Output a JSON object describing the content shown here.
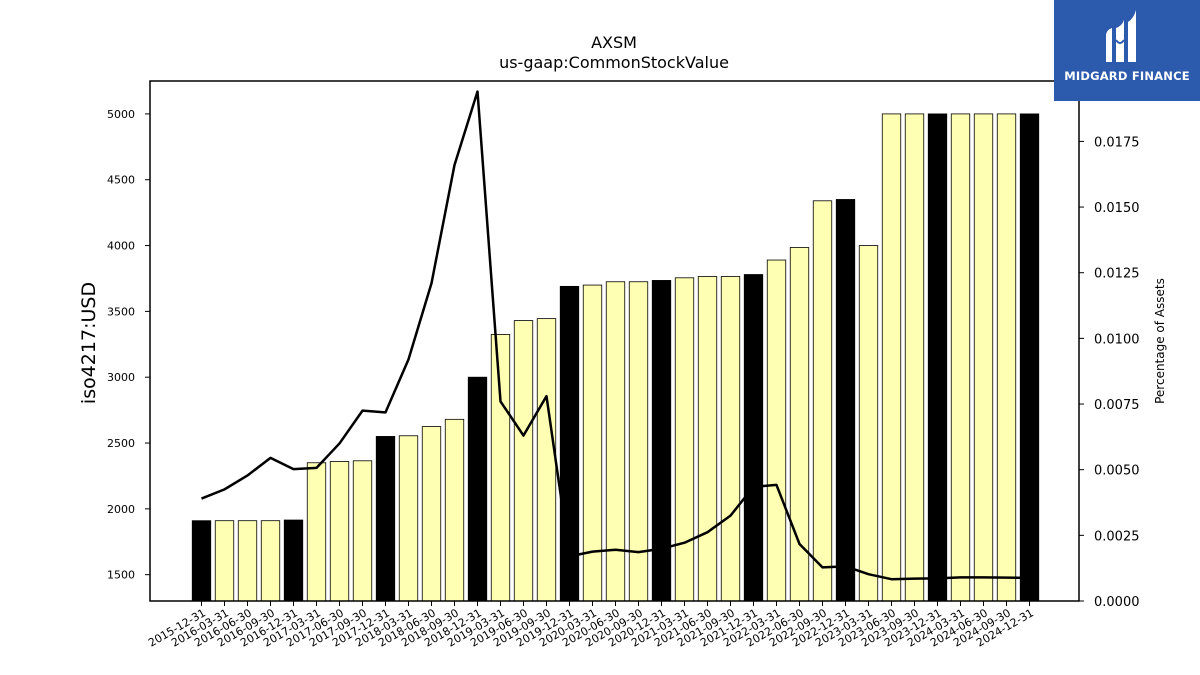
{
  "chart_data": {
    "type": "bar",
    "title": "AXSM",
    "subtitle": "us-gaap:CommonStockValue",
    "ylabel": "iso4217:USD",
    "ylabel_right": "Percentage of Assets",
    "ylim": [
      1300,
      5250
    ],
    "ylim_right": [
      0,
      0.0198
    ],
    "yticks": [
      1500,
      2000,
      2500,
      3000,
      3500,
      4000,
      4500,
      5000
    ],
    "yticks_right": [
      "0.0000",
      "0.0025",
      "0.0050",
      "0.0075",
      "0.0100",
      "0.0125",
      "0.0150",
      "0.0175"
    ],
    "categories": [
      "2015-12-31",
      "2016-03-31",
      "2016-06-30",
      "2016-09-30",
      "2016-12-31",
      "2017-03-31",
      "2017-06-30",
      "2017-09-30",
      "2017-12-31",
      "2018-03-31",
      "2018-06-30",
      "2018-09-30",
      "2018-12-31",
      "2019-03-31",
      "2019-06-30",
      "2019-09-30",
      "2019-12-31",
      "2020-03-31",
      "2020-06-30",
      "2020-09-30",
      "2020-12-31",
      "2021-03-31",
      "2021-06-30",
      "2021-09-30",
      "2021-12-31",
      "2022-03-31",
      "2022-06-30",
      "2022-09-30",
      "2022-12-31",
      "2023-03-31",
      "2023-06-30",
      "2023-09-30",
      "2023-12-31",
      "2024-03-31",
      "2024-06-30",
      "2024-09-30",
      "2024-12-31"
    ],
    "series": [
      {
        "type": "bar",
        "values": [
          1910,
          1910,
          1910,
          1910,
          1915,
          2350,
          2360,
          2365,
          2550,
          2555,
          2625,
          2680,
          3000,
          3325,
          3430,
          3445,
          3690,
          3700,
          3725,
          3725,
          3735,
          3755,
          3765,
          3765,
          3780,
          3890,
          3985,
          4340,
          4350,
          4000,
          5000,
          5000,
          5000,
          5000,
          5000,
          5000,
          5000
        ],
        "annual": [
          true,
          false,
          false,
          false,
          true,
          false,
          false,
          false,
          true,
          false,
          false,
          false,
          true,
          false,
          false,
          false,
          true,
          false,
          false,
          false,
          true,
          false,
          false,
          false,
          true,
          false,
          false,
          false,
          true,
          false,
          false,
          false,
          true,
          false,
          false,
          false,
          true
        ],
        "colors": {
          "annual": "#000000",
          "quarterly": "#ffffb3"
        }
      },
      {
        "type": "line",
        "axis": "right",
        "color": "#000000",
        "values": [
          0.0039,
          0.00425,
          0.00478,
          0.00545,
          0.00502,
          0.00507,
          0.006,
          0.00725,
          0.00718,
          0.0092,
          0.0121,
          0.0166,
          0.0194,
          0.0076,
          0.0063,
          0.0078,
          0.0017,
          0.00188,
          0.00195,
          0.00186,
          0.00199,
          0.00222,
          0.00262,
          0.00325,
          0.00435,
          0.00442,
          0.00217,
          0.00128,
          0.00132,
          0.00102,
          0.00083,
          0.00085,
          0.00086,
          0.0009,
          0.0009,
          0.00089,
          0.00088
        ]
      }
    ],
    "grid": false,
    "legend": "none"
  },
  "logo": {
    "text": "MIDGARD FINANCE"
  }
}
